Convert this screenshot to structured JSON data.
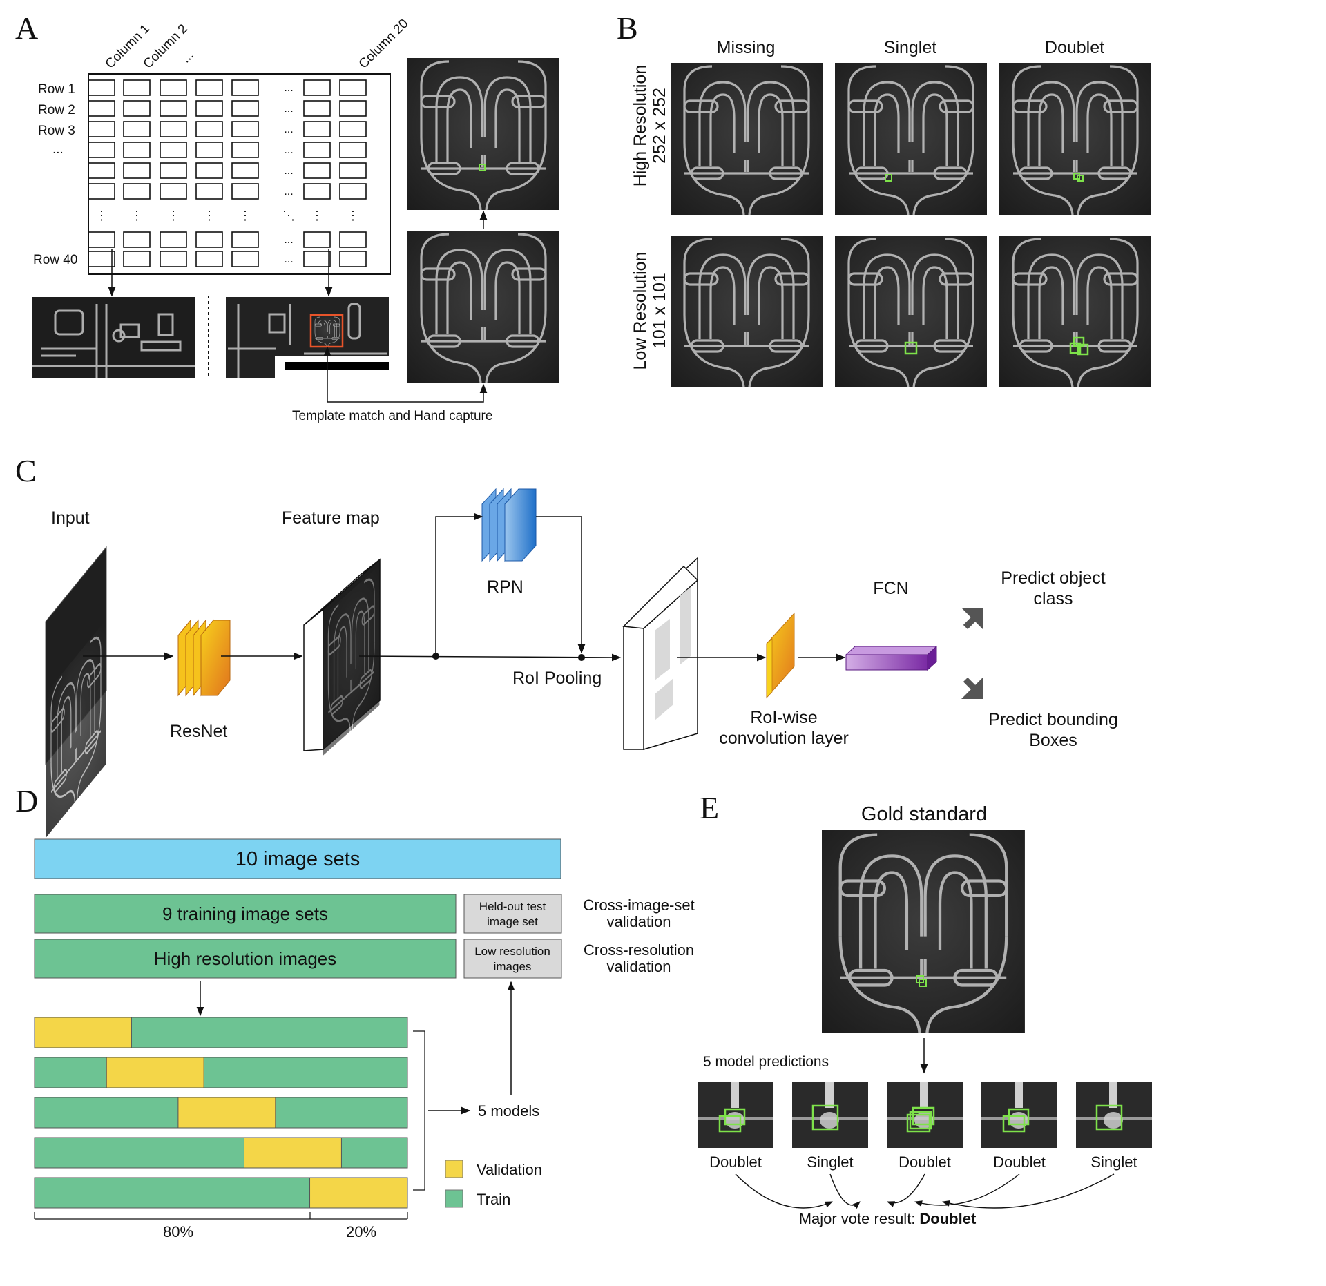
{
  "panels": {
    "A": {
      "letter": "A",
      "columns": [
        "Column 1",
        "Column 2",
        "...",
        "Column 20"
      ],
      "rows": [
        "Row 1",
        "Row 2",
        "Row 3",
        "...",
        "Row 40"
      ],
      "ellipsis": "...",
      "vdots": "⋮",
      "ddots": "⋱",
      "caption": "Template match and Hand capture"
    },
    "B": {
      "letter": "B",
      "col_labels": [
        "Missing",
        "Singlet",
        "Doublet"
      ],
      "row_labels": [
        {
          "line1": "High Resolution",
          "line2": "252 x 252"
        },
        {
          "line1": "Low Resolution",
          "line2": "101 x 101"
        }
      ],
      "accent": "#7ee24a"
    },
    "C": {
      "letter": "C",
      "input": "Input",
      "feature_map": "Feature map",
      "resnet": "ResNet",
      "rpn": "RPN",
      "roi_pooling": "RoI Pooling",
      "fcn": "FCN",
      "roi_conv_line1": "RoI-wise",
      "roi_conv_line2": "convolution layer",
      "predict_class_line1": "Predict object",
      "predict_class_line2": "class",
      "predict_box_line1": "Predict bounding",
      "predict_box_line2": "Boxes",
      "colors": {
        "resnet": "#f2b21a",
        "rpn": "#2a7fd4",
        "fcn": "#8a3ab0"
      }
    },
    "D": {
      "letter": "D",
      "image_sets": "10 image sets",
      "training_sets": "9 training image sets",
      "heldout_line1": "Held-out test",
      "heldout_line2": "image set",
      "cross_image_line1": "Cross-image-set",
      "cross_image_line2": "validation",
      "high_res": "High resolution images",
      "low_res_line1": "Low resolution",
      "low_res_line2": "images",
      "cross_res_line1": "Cross-resolution",
      "cross_res_line2": "validation",
      "models": "5 models",
      "legend": [
        {
          "label": "Validation",
          "color": "#f4d648"
        },
        {
          "label": "Train",
          "color": "#6dc393"
        }
      ],
      "split_train": "80%",
      "split_val": "20%",
      "folds": [
        {
          "val_start": 0.0,
          "val_end": 0.26
        },
        {
          "val_start": 0.193,
          "val_end": 0.454
        },
        {
          "val_start": 0.385,
          "val_end": 0.646
        },
        {
          "val_start": 0.562,
          "val_end": 0.823
        },
        {
          "val_start": 0.738,
          "val_end": 1.0
        }
      ],
      "colors": {
        "image_sets": "#7dd3f2",
        "train": "#6dc393",
        "validation": "#f4d648",
        "gray": "#d9d9d9"
      }
    },
    "E": {
      "letter": "E",
      "gold_standard": "Gold standard",
      "predictions_label": "5 model predictions",
      "predictions": [
        "Doublet",
        "Singlet",
        "Doublet",
        "Doublet",
        "Singlet"
      ],
      "vote_prefix": "Major vote result:",
      "vote_result": "Doublet"
    }
  }
}
